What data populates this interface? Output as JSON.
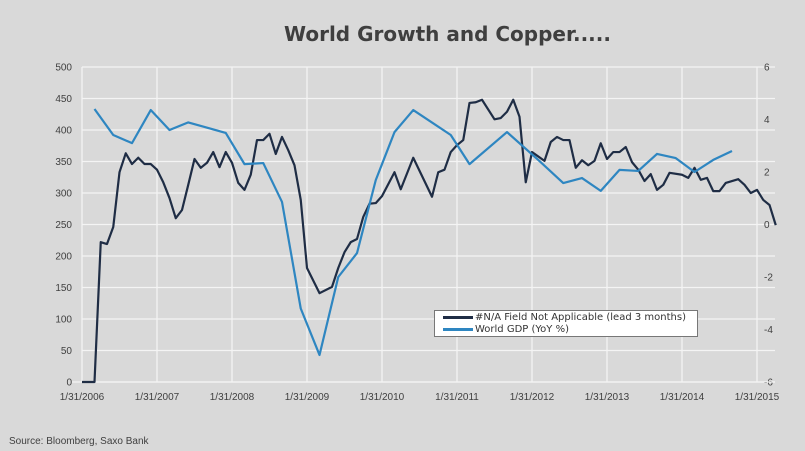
{
  "chart_data": {
    "type": "line",
    "title": "World Growth and Copper.....",
    "source": "Source: Bloomberg, Saxo Bank",
    "x_ticks": [
      "1/31/2006",
      "1/31/2007",
      "1/31/2008",
      "1/31/2009",
      "1/31/2010",
      "1/31/2011",
      "1/31/2012",
      "1/31/2013",
      "1/31/2014",
      "1/31/2015"
    ],
    "y_left": {
      "range": [
        0,
        500
      ],
      "ticks": [
        "0",
        "50",
        "100",
        "150",
        "200",
        "250",
        "300",
        "350",
        "400",
        "450",
        "500"
      ]
    },
    "y_right": {
      "range": [
        -6,
        6
      ],
      "ticks": [
        "-6",
        "-4",
        "-2",
        "0",
        "2",
        "4",
        "6"
      ]
    },
    "grid": true,
    "legend_position": "bottom-right",
    "series": [
      {
        "name": "#N/A Field Not Applicable (lead 3 months)",
        "axis": "left",
        "color": "#1f2d45",
        "points": [
          [
            "2006-01",
            0
          ],
          [
            "2006-03",
            0
          ],
          [
            "2006-04",
            222
          ],
          [
            "2006-05",
            219
          ],
          [
            "2006-06",
            246
          ],
          [
            "2006-07",
            333
          ],
          [
            "2006-08",
            363
          ],
          [
            "2006-09",
            346
          ],
          [
            "2006-10",
            356
          ],
          [
            "2006-11",
            346
          ],
          [
            "2006-12",
            346
          ],
          [
            "2007-01",
            337
          ],
          [
            "2007-02",
            317
          ],
          [
            "2007-03",
            292
          ],
          [
            "2007-04",
            260
          ],
          [
            "2007-05",
            273
          ],
          [
            "2007-06",
            313
          ],
          [
            "2007-07",
            354
          ],
          [
            "2007-08",
            340
          ],
          [
            "2007-09",
            348
          ],
          [
            "2007-10",
            365
          ],
          [
            "2007-11",
            341
          ],
          [
            "2007-12",
            365
          ],
          [
            "2008-01",
            348
          ],
          [
            "2008-02",
            316
          ],
          [
            "2008-03",
            305
          ],
          [
            "2008-04",
            329
          ],
          [
            "2008-05",
            384
          ],
          [
            "2008-06",
            384
          ],
          [
            "2008-07",
            394
          ],
          [
            "2008-08",
            362
          ],
          [
            "2008-09",
            389
          ],
          [
            "2008-10",
            368
          ],
          [
            "2008-11",
            344
          ],
          [
            "2008-12",
            289
          ],
          [
            "2009-01",
            181
          ],
          [
            "2009-03",
            141
          ],
          [
            "2009-05",
            151
          ],
          [
            "2009-06",
            181
          ],
          [
            "2009-07",
            206
          ],
          [
            "2009-08",
            222
          ],
          [
            "2009-09",
            227
          ],
          [
            "2009-10",
            262
          ],
          [
            "2009-11",
            283
          ],
          [
            "2009-12",
            284
          ],
          [
            "2010-01",
            295
          ],
          [
            "2010-03",
            333
          ],
          [
            "2010-04",
            306
          ],
          [
            "2010-06",
            356
          ],
          [
            "2010-09",
            294
          ],
          [
            "2010-10",
            333
          ],
          [
            "2010-11",
            337
          ],
          [
            "2010-12",
            365
          ],
          [
            "2011-01",
            376
          ],
          [
            "2011-02",
            384
          ],
          [
            "2011-03",
            443
          ],
          [
            "2011-04",
            444
          ],
          [
            "2011-05",
            448
          ],
          [
            "2011-07",
            417
          ],
          [
            "2011-08",
            419
          ],
          [
            "2011-09",
            429
          ],
          [
            "2011-10",
            448
          ],
          [
            "2011-11",
            421
          ],
          [
            "2011-12",
            317
          ],
          [
            "2012-01",
            365
          ],
          [
            "2012-03",
            351
          ],
          [
            "2012-04",
            381
          ],
          [
            "2012-05",
            389
          ],
          [
            "2012-06",
            384
          ],
          [
            "2012-07",
            384
          ],
          [
            "2012-08",
            340
          ],
          [
            "2012-09",
            352
          ],
          [
            "2012-10",
            344
          ],
          [
            "2012-11",
            351
          ],
          [
            "2012-12",
            379
          ],
          [
            "2013-01",
            354
          ],
          [
            "2013-02",
            365
          ],
          [
            "2013-03",
            365
          ],
          [
            "2013-04",
            373
          ],
          [
            "2013-05",
            349
          ],
          [
            "2013-06",
            337
          ],
          [
            "2013-07",
            319
          ],
          [
            "2013-08",
            330
          ],
          [
            "2013-09",
            305
          ],
          [
            "2013-10",
            313
          ],
          [
            "2013-11",
            332
          ],
          [
            "2014-01",
            329
          ],
          [
            "2014-02",
            324
          ],
          [
            "2014-03",
            340
          ],
          [
            "2014-04",
            321
          ],
          [
            "2014-05",
            324
          ],
          [
            "2014-06",
            303
          ],
          [
            "2014-07",
            303
          ],
          [
            "2014-08",
            316
          ],
          [
            "2014-10",
            322
          ],
          [
            "2014-11",
            313
          ],
          [
            "2014-12",
            300
          ],
          [
            "2015-01",
            305
          ],
          [
            "2015-02",
            289
          ],
          [
            "2015-03",
            281
          ],
          [
            "2015-04",
            249
          ]
        ]
      },
      {
        "name": "World GDP (YoY %)",
        "axis": "right",
        "color": "#2e86c1",
        "points": [
          [
            "2006-03",
            4.4
          ],
          [
            "2006-06",
            3.41
          ],
          [
            "2006-09",
            3.1
          ],
          [
            "2006-12",
            4.36
          ],
          [
            "2007-03",
            3.6
          ],
          [
            "2007-06",
            3.89
          ],
          [
            "2007-12",
            3.49
          ],
          [
            "2008-03",
            2.3
          ],
          [
            "2008-06",
            2.34
          ],
          [
            "2008-09",
            0.86
          ],
          [
            "2008-12",
            -3.2
          ],
          [
            "2009-03",
            -4.97
          ],
          [
            "2009-06",
            -2.0
          ],
          [
            "2009-09",
            -1.09
          ],
          [
            "2009-12",
            1.69
          ],
          [
            "2010-03",
            3.52
          ],
          [
            "2010-06",
            4.36
          ],
          [
            "2010-12",
            3.41
          ],
          [
            "2011-03",
            2.3
          ],
          [
            "2011-09",
            3.52
          ],
          [
            "2012-02",
            2.46
          ],
          [
            "2012-06",
            1.58
          ],
          [
            "2012-09",
            1.77
          ],
          [
            "2012-12",
            1.28
          ],
          [
            "2013-03",
            2.08
          ],
          [
            "2013-06",
            2.04
          ],
          [
            "2013-09",
            2.69
          ],
          [
            "2013-12",
            2.53
          ],
          [
            "2014-03",
            2.0
          ],
          [
            "2014-06",
            2.46
          ],
          [
            "2014-09",
            2.8
          ]
        ]
      }
    ]
  }
}
